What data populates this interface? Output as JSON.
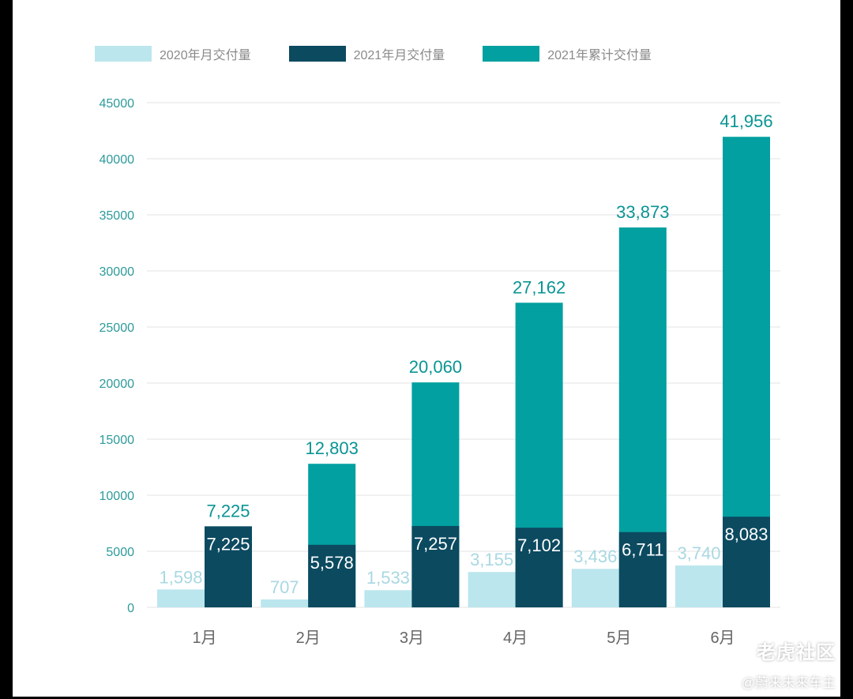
{
  "colors": {
    "2020_monthly": "#bce6ee",
    "2021_monthly": "#0c4a60",
    "2021_cumulative": "#02a0a0",
    "axis_text": "#2e9a9a",
    "grid": "#e3e3e3",
    "month_text": "#666666"
  },
  "legend": [
    {
      "label": "2020年月交付量",
      "color": "#bce6ee"
    },
    {
      "label": "2021年月交付量",
      "color": "#0c4a60"
    },
    {
      "label": "2021年累计交付量",
      "color": "#02a0a0"
    }
  ],
  "chart_data": {
    "type": "bar",
    "title": "",
    "xlabel": "",
    "ylabel": "",
    "ylim": [
      0,
      45000
    ],
    "yticks": [
      0,
      5000,
      10000,
      15000,
      20000,
      25000,
      30000,
      35000,
      40000,
      45000
    ],
    "grid": true,
    "legend_position": "top-left",
    "categories": [
      "1月",
      "2月",
      "3月",
      "4月",
      "5月",
      "6月"
    ],
    "series": [
      {
        "name": "2020年月交付量",
        "values": [
          1598,
          707,
          1533,
          3155,
          3436,
          3740
        ],
        "labels": [
          "1,598",
          "707",
          "1,533",
          "3,155",
          "3,436",
          "3,740"
        ]
      },
      {
        "name": "2021年月交付量",
        "values": [
          7225,
          5578,
          7257,
          7102,
          6711,
          8083
        ],
        "labels": [
          "7,225",
          "5,578",
          "7,257",
          "7,102",
          "6,711",
          "8,083"
        ]
      },
      {
        "name": "2021年累计交付量",
        "values": [
          7225,
          12803,
          20060,
          27162,
          33873,
          41956
        ],
        "labels": [
          "7,225",
          "12,803",
          "20,060",
          "27,162",
          "33,873",
          "41,956"
        ]
      }
    ]
  },
  "watermark": {
    "main": "老虎社区",
    "sub": "@蔚来未来车主"
  }
}
